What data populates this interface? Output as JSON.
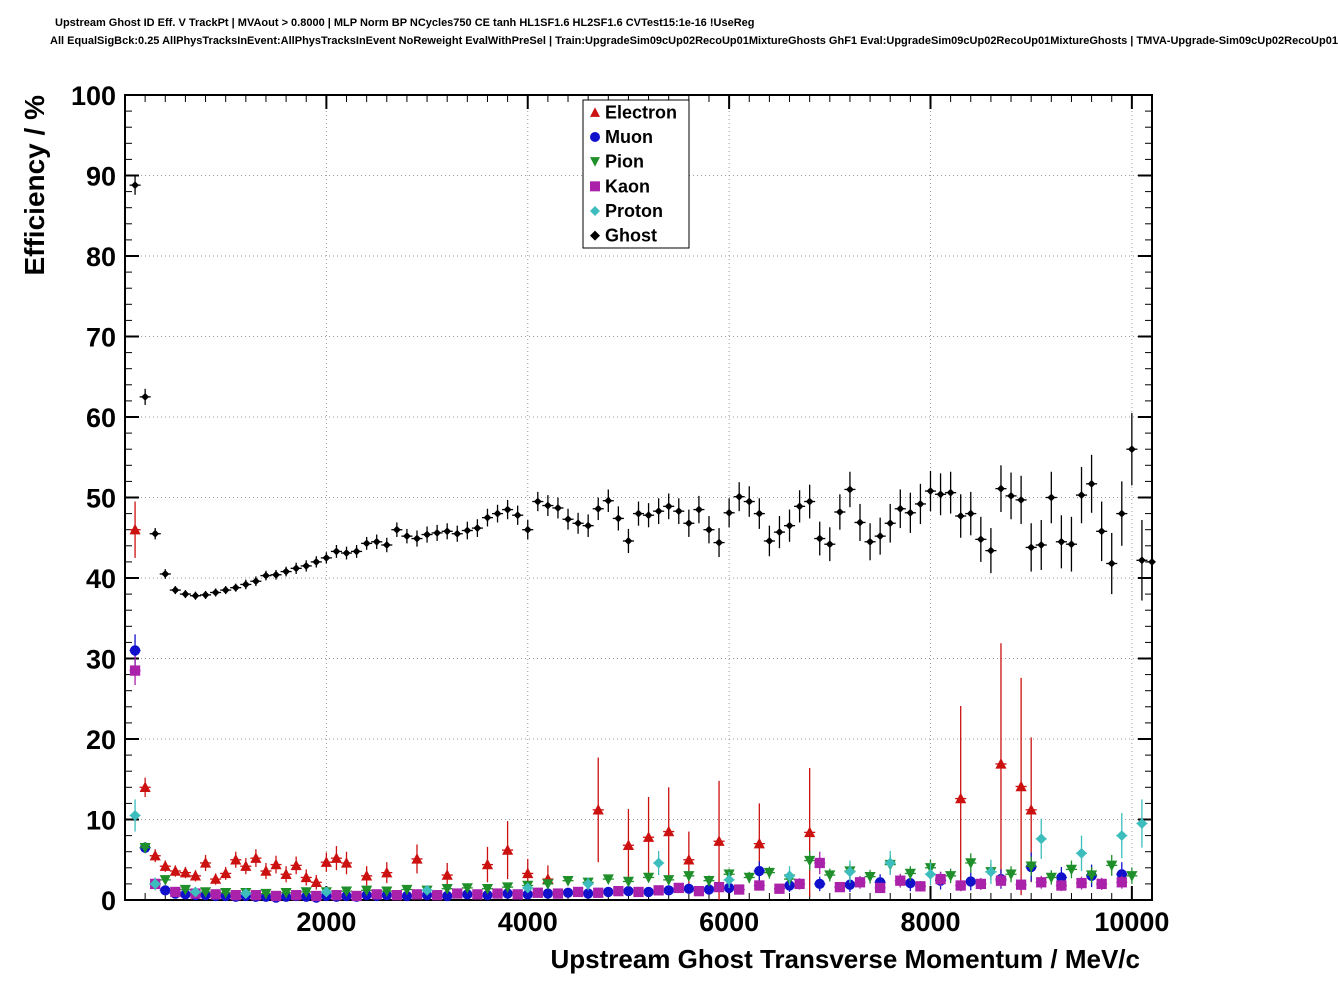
{
  "chart_data": {
    "type": "scatter",
    "title": "Upstream Ghost ID Eff. V TrackPt | MVAout > 0.8000 | MLP Norm BP NCycles750 CE tanh HL1SF1.6 HL2SF1.6 CVTest15:1e-16 !UseReg",
    "subtitle": "All EqualSigBck:0.25 AllPhysTracksInEvent:AllPhysTracksInEvent NoReweight EvalWithPreSel | Train:UpgradeSim09cUp02RecoUp01MixtureGhosts GhF1 Eval:UpgradeSim09cUp02RecoUp01MixtureGhosts | TMVA-Upgrade-Sim09cUp02RecoUp01",
    "xlabel": "Upstream Ghost Transverse Momentum / MeV/c",
    "ylabel": "Efficiency / %",
    "xlim": [
      0,
      10200
    ],
    "ylim": [
      0,
      100
    ],
    "xticks": [
      2000,
      4000,
      6000,
      8000,
      10000
    ],
    "yticks": [
      0,
      10,
      20,
      30,
      40,
      50,
      60,
      70,
      80,
      90,
      100
    ],
    "x_minor_step": 200,
    "y_minor_step": 2,
    "grid": true,
    "legend_position": "top-center",
    "x_halfwidth": 55,
    "series": [
      {
        "name": "Electron",
        "marker": "triangle-up",
        "color": "#cc1111",
        "x": [
          100,
          200,
          300,
          400,
          500,
          600,
          700,
          800,
          900,
          1000,
          1100,
          1200,
          1300,
          1400,
          1500,
          1600,
          1700,
          1800,
          1900,
          2000,
          2100,
          2200,
          2400,
          2600,
          2900,
          3200,
          3600,
          3800,
          4000,
          4200,
          4700,
          5000,
          5200,
          5400,
          5600,
          5900,
          6300,
          6800,
          8300,
          8700,
          8900,
          9000
        ],
        "y": [
          46,
          14,
          5.5,
          4.2,
          3.6,
          3.4,
          3.0,
          4.6,
          2.6,
          3.3,
          5.0,
          4.2,
          5.2,
          3.6,
          4.4,
          3.2,
          4.3,
          2.8,
          2.2,
          4.7,
          5.2,
          4.6,
          3.0,
          3.4,
          5.1,
          3.1,
          4.4,
          6.2,
          3.3,
          2.6,
          11.2,
          6.8,
          7.8,
          8.5,
          5.0,
          7.3,
          7.0,
          8.4,
          12.6,
          16.9,
          14.1,
          11.2
        ],
        "ey": [
          3.5,
          1.2,
          0.8,
          0.7,
          0.7,
          0.7,
          0.7,
          1.0,
          0.7,
          0.8,
          1.0,
          1.0,
          1.1,
          1.0,
          1.1,
          1.0,
          1.1,
          1.0,
          0.9,
          1.2,
          1.5,
          1.4,
          1.2,
          1.3,
          1.8,
          1.5,
          2.2,
          3.6,
          1.8,
          1.7,
          6.5,
          4.5,
          5.0,
          5.5,
          3.5,
          7.5,
          5.0,
          8.0,
          11.5,
          15.0,
          13.5,
          9.0
        ]
      },
      {
        "name": "Muon",
        "marker": "circle",
        "color": "#1111cc",
        "x": [
          100,
          200,
          300,
          400,
          500,
          600,
          700,
          800,
          900,
          1000,
          1100,
          1200,
          1300,
          1400,
          1500,
          1600,
          1700,
          1800,
          1900,
          2000,
          2100,
          2200,
          2300,
          2400,
          2500,
          2600,
          2800,
          3000,
          3200,
          3400,
          3600,
          3800,
          4000,
          4200,
          4400,
          4600,
          4800,
          5000,
          5200,
          5400,
          5600,
          5800,
          6000,
          6300,
          6600,
          6900,
          7200,
          7500,
          7800,
          8100,
          8400,
          8700,
          9000,
          9300,
          9600,
          9900
        ],
        "y": [
          31,
          6.5,
          2.0,
          1.2,
          0.8,
          0.7,
          0.6,
          0.6,
          0.5,
          0.5,
          0.4,
          0.5,
          0.4,
          0.4,
          0.3,
          0.4,
          0.5,
          0.4,
          0.3,
          0.5,
          0.4,
          0.5,
          0.4,
          0.6,
          0.5,
          0.6,
          0.5,
          0.6,
          0.5,
          0.7,
          0.6,
          0.8,
          0.7,
          0.8,
          0.9,
          0.8,
          1.0,
          1.1,
          1.0,
          1.2,
          1.4,
          1.3,
          1.5,
          3.6,
          1.8,
          2.0,
          1.9,
          2.2,
          2.1,
          2.4,
          2.3,
          2.6,
          4.1,
          2.8,
          3.0,
          3.2
        ],
        "ey": [
          2.0,
          0.6,
          0.3,
          0.2,
          0.2,
          0.2,
          0.2,
          0.2,
          0.2,
          0.2,
          0.2,
          0.2,
          0.2,
          0.2,
          0.15,
          0.2,
          0.2,
          0.2,
          0.15,
          0.2,
          0.2,
          0.2,
          0.2,
          0.25,
          0.25,
          0.25,
          0.25,
          0.3,
          0.3,
          0.3,
          0.3,
          0.35,
          0.35,
          0.4,
          0.4,
          0.4,
          0.45,
          0.5,
          0.5,
          0.55,
          0.6,
          0.6,
          0.65,
          1.2,
          0.8,
          0.9,
          0.9,
          1.0,
          1.0,
          1.1,
          1.1,
          1.2,
          1.8,
          1.3,
          1.4,
          1.5
        ]
      },
      {
        "name": "Pion",
        "marker": "triangle-down",
        "color": "#1f8f2a",
        "x": [
          200,
          400,
          600,
          800,
          1000,
          1200,
          1400,
          1600,
          1800,
          2000,
          2200,
          2400,
          2600,
          2800,
          3000,
          3200,
          3400,
          3600,
          3800,
          4000,
          4200,
          4400,
          4600,
          4800,
          5000,
          5200,
          5400,
          5600,
          5800,
          6000,
          6200,
          6400,
          6600,
          6800,
          7000,
          7200,
          7400,
          7600,
          7800,
          8000,
          8200,
          8400,
          8600,
          8800,
          9000,
          9200,
          9400,
          9600,
          9800,
          10000
        ],
        "y": [
          6.5,
          2.5,
          1.3,
          1.0,
          0.9,
          0.9,
          0.8,
          0.9,
          1.0,
          1.0,
          1.1,
          1.2,
          1.1,
          1.3,
          1.2,
          1.4,
          1.5,
          1.4,
          1.6,
          1.8,
          2.0,
          2.4,
          2.2,
          2.6,
          2.3,
          2.8,
          2.5,
          3.0,
          2.4,
          3.2,
          2.8,
          3.4,
          2.6,
          4.9,
          3.1,
          3.6,
          2.9,
          4.4,
          3.3,
          4.0,
          3.0,
          4.6,
          3.5,
          3.2,
          4.2,
          2.8,
          3.8,
          3.1,
          4.3,
          3.0
        ],
        "ey": [
          0.7,
          0.4,
          0.25,
          0.2,
          0.2,
          0.2,
          0.2,
          0.2,
          0.2,
          0.2,
          0.25,
          0.25,
          0.25,
          0.3,
          0.3,
          0.3,
          0.35,
          0.35,
          0.4,
          0.4,
          0.45,
          0.5,
          0.5,
          0.55,
          0.55,
          0.6,
          0.6,
          0.65,
          0.65,
          0.7,
          0.7,
          0.75,
          0.75,
          1.2,
          0.8,
          0.9,
          0.85,
          1.1,
          0.9,
          1.0,
          0.9,
          1.2,
          1.0,
          1.0,
          1.2,
          0.9,
          1.1,
          1.0,
          1.3,
          1.0
        ]
      },
      {
        "name": "Kaon",
        "marker": "square",
        "color": "#aa22aa",
        "x": [
          100,
          300,
          500,
          700,
          900,
          1100,
          1300,
          1500,
          1700,
          1900,
          2100,
          2300,
          2500,
          2700,
          2900,
          3100,
          3300,
          3500,
          3700,
          3900,
          4100,
          4300,
          4500,
          4700,
          4900,
          5100,
          5300,
          5500,
          5700,
          5900,
          6100,
          6300,
          6500,
          6700,
          6900,
          7100,
          7300,
          7500,
          7700,
          7900,
          8100,
          8300,
          8500,
          8700,
          8900,
          9100,
          9300,
          9500,
          9700,
          9900
        ],
        "y": [
          28.5,
          2.0,
          1.0,
          0.8,
          0.7,
          0.6,
          0.6,
          0.5,
          0.6,
          0.5,
          0.6,
          0.5,
          0.7,
          0.6,
          0.7,
          0.6,
          0.8,
          0.7,
          0.8,
          0.7,
          0.9,
          0.8,
          1.0,
          0.9,
          1.1,
          1.0,
          1.2,
          1.5,
          1.1,
          1.6,
          1.3,
          1.8,
          1.4,
          2.0,
          4.6,
          1.6,
          2.2,
          1.5,
          2.4,
          1.7,
          2.6,
          1.8,
          2.0,
          2.4,
          1.9,
          2.2,
          1.8,
          2.1,
          2.0,
          2.2
        ],
        "ey": [
          1.8,
          0.4,
          0.2,
          0.2,
          0.15,
          0.15,
          0.15,
          0.15,
          0.15,
          0.15,
          0.2,
          0.15,
          0.2,
          0.2,
          0.2,
          0.2,
          0.25,
          0.25,
          0.25,
          0.25,
          0.3,
          0.3,
          0.35,
          0.35,
          0.4,
          0.4,
          0.45,
          0.5,
          0.45,
          0.55,
          0.5,
          0.6,
          0.55,
          0.7,
          1.4,
          0.6,
          0.8,
          0.6,
          0.85,
          0.65,
          0.9,
          0.7,
          0.75,
          0.85,
          0.7,
          0.8,
          0.7,
          0.8,
          0.75,
          0.8
        ]
      },
      {
        "name": "Proton",
        "marker": "diamond",
        "color": "#3dbdbd",
        "x": [
          100,
          300,
          700,
          1200,
          2000,
          3000,
          4000,
          4600,
          5300,
          6000,
          6600,
          7200,
          7600,
          8000,
          8600,
          9100,
          9500,
          9900,
          10100
        ],
        "y": [
          10.5,
          2.0,
          1.0,
          0.8,
          1.0,
          1.2,
          1.5,
          2.0,
          4.6,
          2.5,
          3.0,
          3.5,
          4.6,
          3.2,
          3.5,
          7.6,
          5.8,
          8.0,
          9.5
        ],
        "ey": [
          2.0,
          0.8,
          0.5,
          0.4,
          0.4,
          0.5,
          0.6,
          0.8,
          1.5,
          1.0,
          1.2,
          1.4,
          1.5,
          1.4,
          1.5,
          2.5,
          2.2,
          2.8,
          3.0
        ]
      },
      {
        "name": "Ghost",
        "marker": "diamond",
        "color": "#000000",
        "x": [
          100,
          200,
          300,
          400,
          500,
          600,
          700,
          800,
          900,
          1000,
          1100,
          1200,
          1300,
          1400,
          1500,
          1600,
          1700,
          1800,
          1900,
          2000,
          2100,
          2200,
          2300,
          2400,
          2500,
          2600,
          2700,
          2800,
          2900,
          3000,
          3100,
          3200,
          3300,
          3400,
          3500,
          3600,
          3700,
          3800,
          3900,
          4000,
          4100,
          4200,
          4300,
          4400,
          4500,
          4600,
          4700,
          4800,
          4900,
          5000,
          5100,
          5200,
          5300,
          5400,
          5500,
          5600,
          5700,
          5800,
          5900,
          6000,
          6100,
          6200,
          6300,
          6400,
          6500,
          6600,
          6700,
          6800,
          6900,
          7000,
          7100,
          7200,
          7300,
          7400,
          7500,
          7600,
          7700,
          7800,
          7900,
          8000,
          8100,
          8200,
          8300,
          8400,
          8500,
          8600,
          8700,
          8800,
          8900,
          9000,
          9100,
          9200,
          9300,
          9400,
          9500,
          9600,
          9700,
          9800,
          9900,
          10000,
          10100,
          10200
        ],
        "y": [
          88.8,
          62.5,
          45.5,
          40.5,
          38.5,
          38.0,
          37.8,
          37.9,
          38.2,
          38.5,
          38.8,
          39.2,
          39.6,
          40.3,
          40.4,
          40.8,
          41.2,
          41.5,
          42.0,
          42.5,
          43.3,
          43.1,
          43.3,
          44.3,
          44.5,
          44.1,
          46.0,
          45.2,
          44.9,
          45.4,
          45.6,
          45.8,
          45.5,
          45.9,
          46.2,
          47.5,
          48.0,
          48.5,
          47.8,
          46.0,
          49.5,
          49.0,
          48.7,
          47.3,
          46.8,
          46.5,
          48.6,
          49.6,
          47.4,
          44.6,
          48.0,
          47.8,
          48.3,
          48.9,
          48.3,
          46.8,
          48.5,
          46.0,
          44.4,
          48.1,
          50.1,
          49.5,
          48.0,
          44.6,
          45.7,
          46.5,
          48.9,
          49.5,
          44.9,
          44.2,
          48.2,
          51.0,
          46.9,
          44.5,
          45.2,
          46.8,
          48.6,
          48.1,
          49.2,
          50.8,
          50.4,
          50.6,
          47.7,
          48.0,
          44.8,
          43.4,
          51.1,
          50.2,
          49.7,
          43.8,
          44.1,
          50.0,
          44.5,
          44.2,
          50.3,
          51.7,
          45.8,
          41.8,
          48.0,
          56.0,
          42.2,
          42.0
        ],
        "ey": [
          1.2,
          1.0,
          0.7,
          0.6,
          0.5,
          0.5,
          0.5,
          0.5,
          0.5,
          0.5,
          0.5,
          0.6,
          0.6,
          0.6,
          0.6,
          0.6,
          0.7,
          0.7,
          0.7,
          0.7,
          0.8,
          0.8,
          0.8,
          0.8,
          0.9,
          0.9,
          0.9,
          0.9,
          1.0,
          1.0,
          1.0,
          1.0,
          1.0,
          1.1,
          1.1,
          1.1,
          1.1,
          1.2,
          1.2,
          1.2,
          1.2,
          1.3,
          1.3,
          1.3,
          1.3,
          1.4,
          1.4,
          1.4,
          1.5,
          1.5,
          1.5,
          1.5,
          1.6,
          1.6,
          1.6,
          1.7,
          1.7,
          1.7,
          1.8,
          1.8,
          1.8,
          1.9,
          1.9,
          1.9,
          2.0,
          2.0,
          2.0,
          2.1,
          2.1,
          2.1,
          2.2,
          2.2,
          2.3,
          2.3,
          2.3,
          2.4,
          2.4,
          2.5,
          2.5,
          2.5,
          2.6,
          2.6,
          2.7,
          2.7,
          2.8,
          2.8,
          2.9,
          2.9,
          3.0,
          3.0,
          3.1,
          3.2,
          3.3,
          3.4,
          3.5,
          3.6,
          3.7,
          3.8,
          4.0,
          4.5,
          5.0,
          5.5
        ]
      }
    ]
  }
}
